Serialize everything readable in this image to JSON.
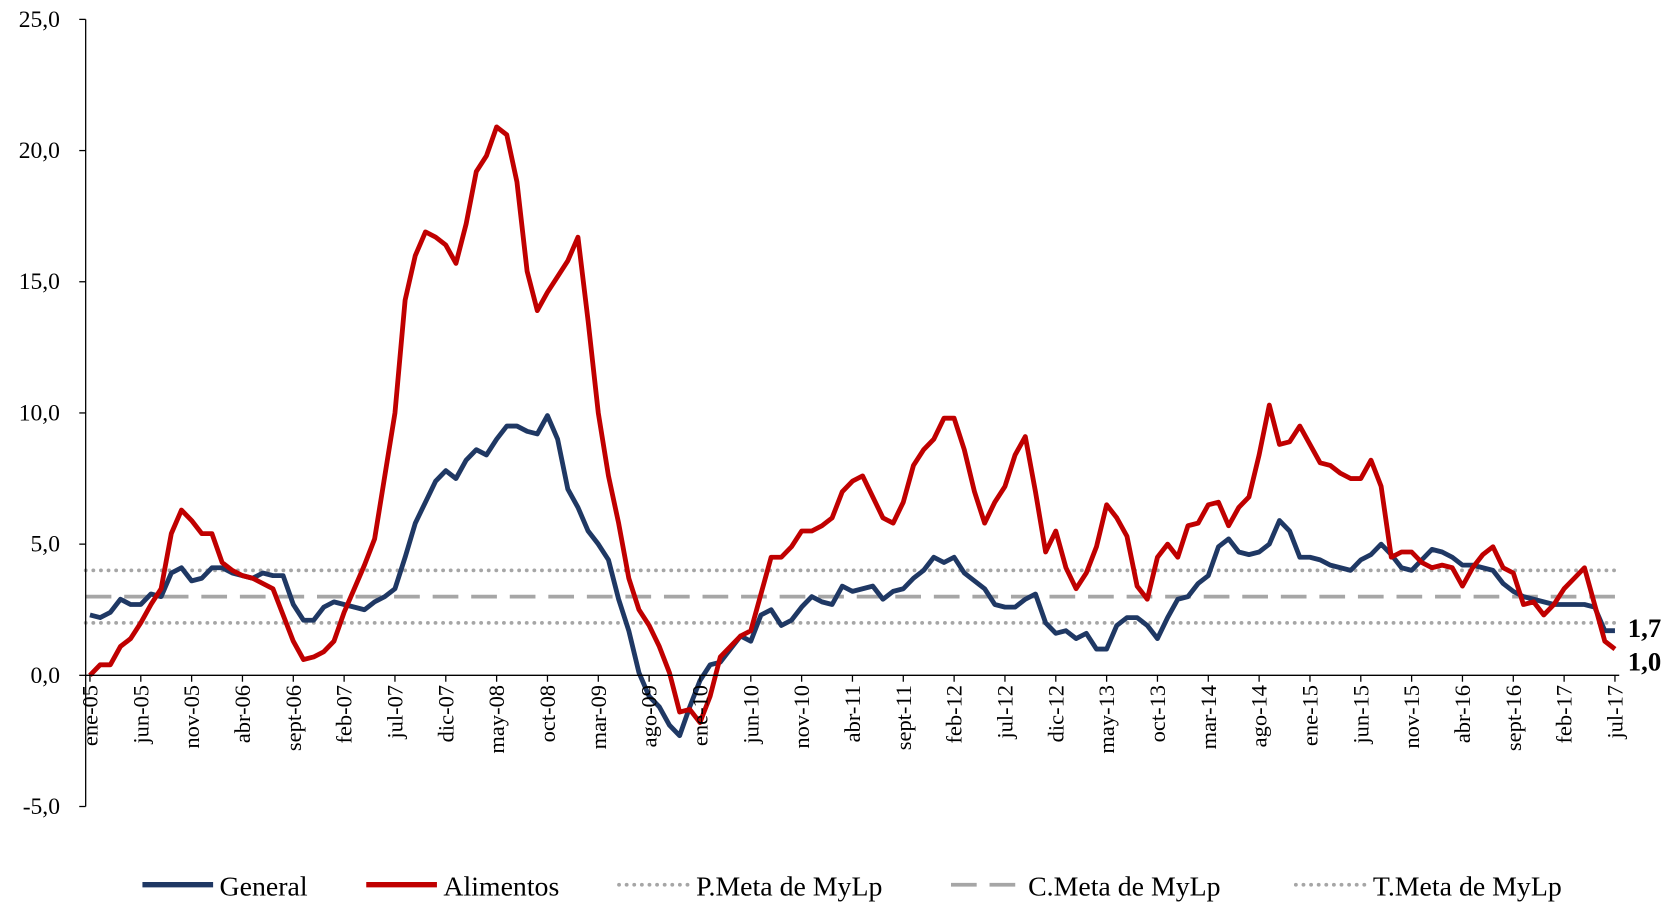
{
  "chart_data": {
    "type": "line",
    "categories": [
      "ene-05",
      null,
      null,
      null,
      null,
      "jun-05",
      null,
      null,
      null,
      null,
      "nov-05",
      null,
      null,
      null,
      null,
      "abr-06",
      null,
      null,
      null,
      null,
      "sept-06",
      null,
      null,
      null,
      null,
      "feb-07",
      null,
      null,
      null,
      null,
      "jul-07",
      null,
      null,
      null,
      null,
      "dic-07",
      null,
      null,
      null,
      null,
      "may-08",
      null,
      null,
      null,
      null,
      "oct-08",
      null,
      null,
      null,
      null,
      "mar-09",
      null,
      null,
      null,
      null,
      "ago-09",
      null,
      null,
      null,
      null,
      "ene-10",
      null,
      null,
      null,
      null,
      "jun-10",
      null,
      null,
      null,
      null,
      "nov-10",
      null,
      null,
      null,
      null,
      "abr-11",
      null,
      null,
      null,
      null,
      "sept-11",
      null,
      null,
      null,
      null,
      "feb-12",
      null,
      null,
      null,
      null,
      "jul-12",
      null,
      null,
      null,
      null,
      "dic-12",
      null,
      null,
      null,
      null,
      "may-13",
      null,
      null,
      null,
      null,
      "oct-13",
      null,
      null,
      null,
      null,
      "mar-14",
      null,
      null,
      null,
      null,
      "ago-14",
      null,
      null,
      null,
      null,
      "ene-15",
      null,
      null,
      null,
      null,
      "jun-15",
      null,
      null,
      null,
      null,
      "nov-15",
      null,
      null,
      null,
      null,
      "abr-16",
      null,
      null,
      null,
      null,
      "sept-16",
      null,
      null,
      null,
      null,
      "feb-17",
      null,
      null,
      null,
      null,
      "jul-17"
    ],
    "series": [
      {
        "name": "General",
        "color": "#1f3864",
        "last_label": "1,7",
        "values": [
          2.3,
          2.2,
          2.4,
          2.9,
          2.7,
          2.7,
          3.1,
          3.0,
          3.9,
          4.1,
          3.6,
          3.7,
          4.1,
          4.1,
          3.9,
          3.8,
          3.7,
          3.9,
          3.8,
          3.8,
          2.7,
          2.1,
          2.1,
          2.6,
          2.8,
          2.7,
          2.6,
          2.5,
          2.8,
          3.0,
          3.3,
          4.5,
          5.8,
          6.6,
          7.4,
          7.8,
          7.5,
          8.2,
          8.6,
          8.4,
          9.0,
          9.5,
          9.5,
          9.3,
          9.2,
          9.9,
          9.0,
          7.1,
          6.4,
          5.5,
          5.0,
          4.4,
          2.9,
          1.7,
          0.1,
          -0.8,
          -1.2,
          -1.9,
          -2.3,
          -1.2,
          -0.2,
          0.4,
          0.5,
          1.0,
          1.5,
          1.3,
          2.3,
          2.5,
          1.9,
          2.1,
          2.6,
          3.0,
          2.8,
          2.7,
          3.4,
          3.2,
          3.3,
          3.4,
          2.9,
          3.2,
          3.3,
          3.7,
          4.0,
          4.5,
          4.3,
          4.5,
          3.9,
          3.6,
          3.3,
          2.7,
          2.6,
          2.6,
          2.9,
          3.1,
          2.0,
          1.6,
          1.7,
          1.4,
          1.6,
          1.0,
          1.0,
          1.9,
          2.2,
          2.2,
          1.9,
          1.4,
          2.2,
          2.9,
          3.0,
          3.5,
          3.8,
          4.9,
          5.2,
          4.7,
          4.6,
          4.7,
          5.0,
          5.9,
          5.5,
          4.5,
          4.5,
          4.4,
          4.2,
          4.1,
          4.0,
          4.4,
          4.6,
          5.0,
          4.6,
          4.1,
          4.0,
          4.4,
          4.8,
          4.7,
          4.5,
          4.2,
          4.2,
          4.1,
          4.0,
          3.5,
          3.2,
          3.0,
          2.9,
          2.8,
          2.7,
          2.7,
          2.7,
          2.7,
          2.6,
          1.7,
          1.7
        ]
      },
      {
        "name": "Alimentos",
        "color": "#c00000",
        "last_label": "1,0",
        "values": [
          0.0,
          0.4,
          0.4,
          1.1,
          1.4,
          2.0,
          2.7,
          3.3,
          5.4,
          6.3,
          5.9,
          5.4,
          5.4,
          4.3,
          4.0,
          3.8,
          3.7,
          3.5,
          3.3,
          2.3,
          1.3,
          0.6,
          0.7,
          0.9,
          1.3,
          2.4,
          3.3,
          4.2,
          5.2,
          7.6,
          10.0,
          14.3,
          16.0,
          16.9,
          16.7,
          16.4,
          15.7,
          17.2,
          19.2,
          19.8,
          20.9,
          20.6,
          18.8,
          15.4,
          13.9,
          14.6,
          15.2,
          15.8,
          16.7,
          13.5,
          10.0,
          7.6,
          5.8,
          3.7,
          2.5,
          1.9,
          1.1,
          0.1,
          -1.4,
          -1.3,
          -1.8,
          -0.8,
          0.7,
          1.1,
          1.5,
          1.7,
          3.1,
          4.5,
          4.5,
          4.9,
          5.5,
          5.5,
          5.7,
          6.0,
          7.0,
          7.4,
          7.6,
          6.8,
          6.0,
          5.8,
          6.6,
          8.0,
          8.6,
          9.0,
          9.8,
          9.8,
          8.6,
          7.0,
          5.8,
          6.6,
          7.2,
          8.4,
          9.1,
          7.0,
          4.7,
          5.5,
          4.1,
          3.3,
          3.9,
          4.9,
          6.5,
          6.0,
          5.3,
          3.4,
          2.9,
          4.5,
          5.0,
          4.5,
          5.7,
          5.8,
          6.5,
          6.6,
          5.7,
          6.4,
          6.8,
          8.4,
          10.3,
          8.8,
          8.9,
          9.5,
          8.8,
          8.1,
          8.0,
          7.7,
          7.5,
          7.5,
          8.2,
          7.2,
          4.5,
          4.7,
          4.7,
          4.3,
          4.1,
          4.2,
          4.1,
          3.4,
          4.1,
          4.6,
          4.9,
          4.1,
          3.9,
          2.7,
          2.8,
          2.3,
          2.7,
          3.3,
          3.7,
          4.1,
          2.7,
          1.3,
          1.0
        ]
      }
    ],
    "reference_lines": [
      {
        "name": "P.Meta de MyLp",
        "value": 4,
        "color": "#a6a6a6",
        "style": "dotted"
      },
      {
        "name": "C.Meta de MyLp",
        "value": 3,
        "color": "#a6a6a6",
        "style": "dashed"
      },
      {
        "name": "T.Meta de MyLp",
        "value": 2,
        "color": "#a6a6a6",
        "style": "dotted"
      }
    ],
    "ylim": [
      -5,
      25
    ],
    "yticks": [
      {
        "value": -5,
        "label": "-5,0"
      },
      {
        "value": 0,
        "label": "0,0"
      },
      {
        "value": 5,
        "label": "5,0"
      },
      {
        "value": 10,
        "label": "10,0"
      },
      {
        "value": 15,
        "label": "15,0"
      },
      {
        "value": 20,
        "label": "20,0"
      },
      {
        "value": 25,
        "label": "25,0"
      }
    ],
    "legend": "bottom"
  }
}
